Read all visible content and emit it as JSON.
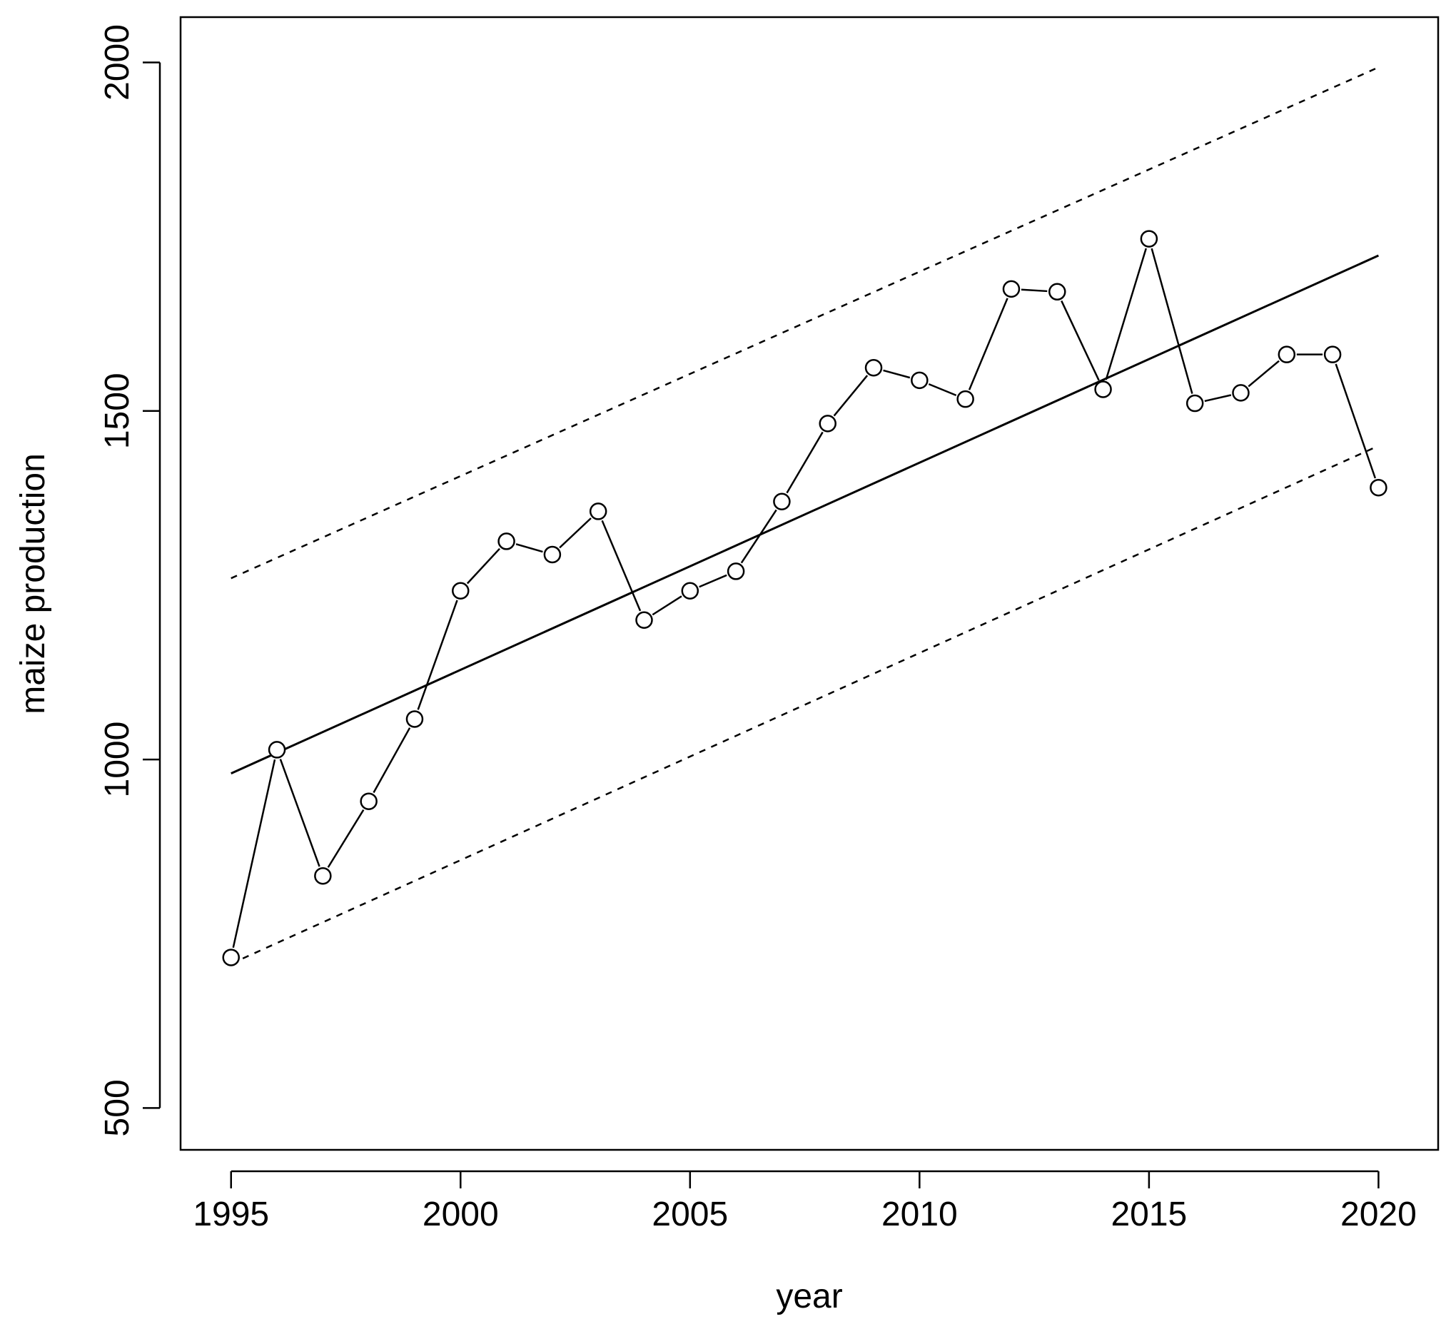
{
  "chart_data": {
    "type": "line",
    "xlabel": "year",
    "ylabel": "maize production",
    "xlim": [
      1993.9,
      2021.3
    ],
    "ylim": [
      440,
      2065
    ],
    "xticks": [
      1995,
      2000,
      2005,
      2010,
      2015,
      2020
    ],
    "yticks": [
      500,
      1000,
      1500,
      2000
    ],
    "grid": false,
    "points": {
      "x": [
        1995,
        1996,
        1997,
        1998,
        1999,
        2000,
        2001,
        2002,
        2003,
        2004,
        2005,
        2006,
        2007,
        2008,
        2009,
        2010,
        2011,
        2012,
        2013,
        2014,
        2015,
        2016,
        2017,
        2018,
        2019,
        2020
      ],
      "y": [
        716,
        1014,
        833,
        940,
        1058,
        1242,
        1313,
        1294,
        1356,
        1200,
        1242,
        1270,
        1370,
        1482,
        1562,
        1544,
        1517,
        1675,
        1671,
        1531,
        1747,
        1511,
        1526,
        1581,
        1581,
        1390
      ]
    },
    "fit": {
      "style": "solid",
      "x": [
        1995,
        2020
      ],
      "y": [
        980,
        1723
      ]
    },
    "bands": [
      {
        "style": "dashed",
        "x": [
          1995,
          2020
        ],
        "y": [
          1260,
          1993
        ]
      },
      {
        "style": "dashed",
        "x": [
          1995,
          2020
        ],
        "y": [
          707,
          1450
        ]
      }
    ]
  }
}
